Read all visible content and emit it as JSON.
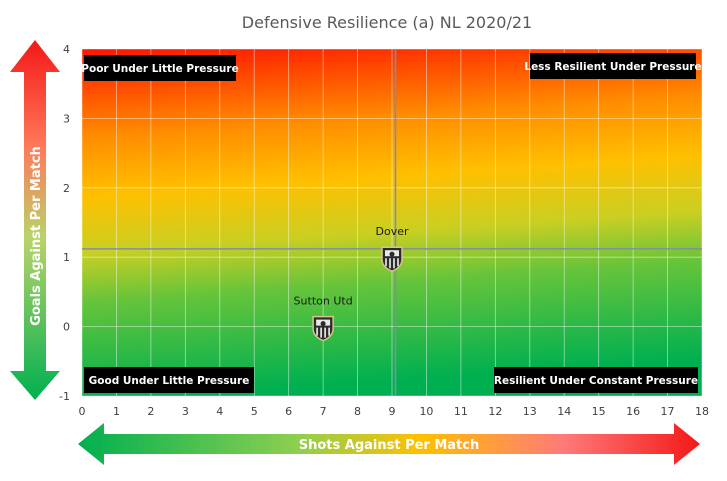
{
  "chart_data": {
    "type": "scatter",
    "title": "Defensive Resilience (a) NL 2020/21",
    "xlabel": "Shots Against Per Match",
    "ylabel": "Goals Against Per Match",
    "xlim": [
      0,
      18
    ],
    "ylim": [
      -1,
      4
    ],
    "x_ticks": [
      "0",
      "1",
      "2",
      "3",
      "4",
      "5",
      "6",
      "7",
      "8",
      "9",
      "10",
      "11",
      "12",
      "13",
      "14",
      "15",
      "16",
      "17",
      "18"
    ],
    "y_ticks": [
      "-1",
      "0",
      "1",
      "2",
      "3",
      "4"
    ],
    "grid": true,
    "points": [
      {
        "label": "Dover",
        "x": 9.0,
        "y": 1.0
      },
      {
        "label": "Sutton Utd",
        "x": 7.0,
        "y": 0.0
      }
    ],
    "reference_lines": {
      "x": 9.1,
      "y": 1.12
    },
    "quadrants": {
      "top_left": "Poor Under Little Pressure",
      "top_right": "Less Resilient Under Pressure",
      "bottom_left": "Good Under Little Pressure",
      "bottom_right": "Resilient Under Constant Pressure"
    },
    "colors": {
      "bad": "#ff1a00",
      "mid": "#ffc000",
      "good": "#00b050",
      "grid": "#ffffff",
      "reference": "#7f8fa6",
      "box": "#000000"
    },
    "point_icon": "club-crest-icon"
  }
}
